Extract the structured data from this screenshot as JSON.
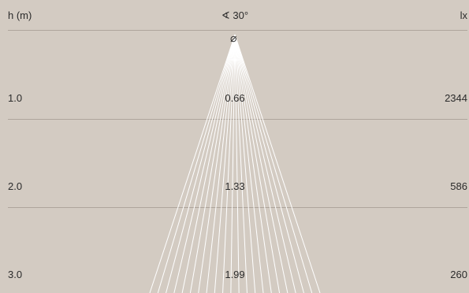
{
  "header": {
    "height_label": "h (m)",
    "angle_label": "∢ 30°",
    "lux_label": "lx",
    "diameter_symbol": "⌀"
  },
  "rows": [
    {
      "h": "1.0",
      "diameter": "0.66",
      "lux": "2344"
    },
    {
      "h": "2.0",
      "diameter": "1.33",
      "lux": "586"
    },
    {
      "h": "3.0",
      "diameter": "1.99",
      "lux": "260"
    }
  ],
  "colors": {
    "background": "#d3cbc2",
    "beam": "#ffffff",
    "rule": "#aea59c",
    "text": "#2b2b2b"
  }
}
